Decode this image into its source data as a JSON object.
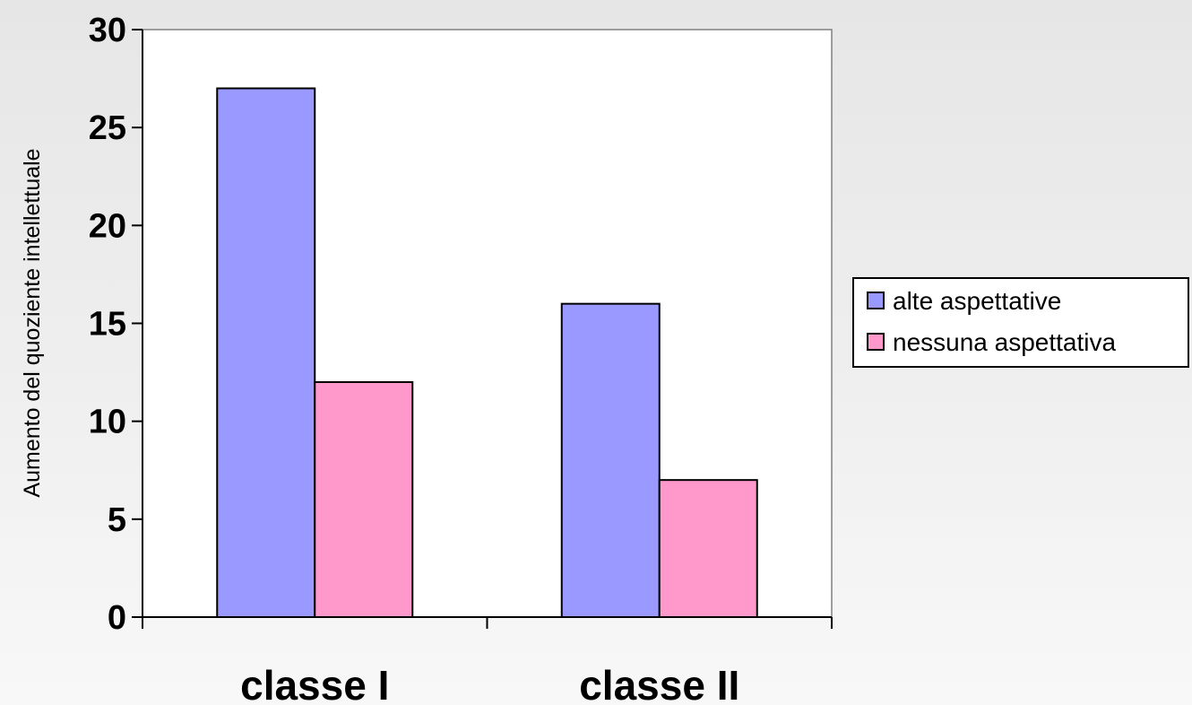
{
  "chart_data": {
    "type": "bar",
    "categories": [
      "classe I",
      "classe II"
    ],
    "series": [
      {
        "name": "alte aspettative",
        "values": [
          27,
          16
        ],
        "color": "#9999ff"
      },
      {
        "name": "nessuna aspettativa",
        "values": [
          12,
          7
        ],
        "color": "#ff99cc"
      }
    ],
    "ylabel": "Aumento del quoziente intellettuale",
    "xlabel": "",
    "ylim": [
      0,
      30
    ],
    "yticks": [
      0,
      5,
      10,
      15,
      20,
      25,
      30
    ],
    "grid": false,
    "legend_position": "right",
    "plot_background": "#ffffff",
    "frame_color": "#808080"
  }
}
